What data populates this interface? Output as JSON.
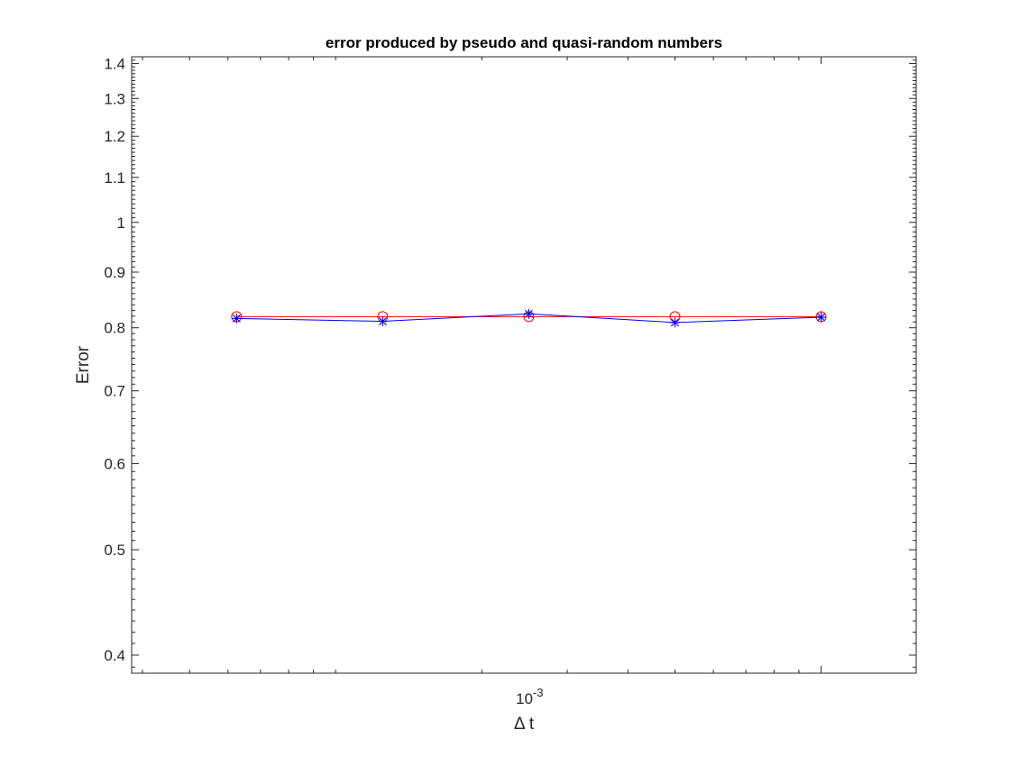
{
  "chart_data": {
    "type": "line",
    "title": "error produced by pseudo and quasi-random numbers",
    "xlabel": "Δ t",
    "ylabel": "Error",
    "x_scale": "log",
    "y_scale": "log",
    "x_tick_base": "10",
    "x_tick_exponent": "-3",
    "ylim": [
      0.385,
      1.42
    ],
    "y_ticks": [
      0.4,
      0.5,
      0.6,
      0.7,
      0.8,
      0.9,
      1,
      1.1,
      1.2,
      1.3,
      1.4
    ],
    "y_tick_labels": [
      "0.4",
      "0.5",
      "0.6",
      "0.7",
      "0.8",
      "0.9",
      "1",
      "1.1",
      "1.2",
      "1.3",
      "1.4"
    ],
    "grid": false,
    "box": true,
    "series": [
      {
        "color": "#ff0000",
        "marker": "circle",
        "x": [
          6.25e-05,
          0.000125,
          0.00025,
          0.0005,
          0.001
        ],
        "y": [
          0.819,
          0.819,
          0.819,
          0.819,
          0.819
        ]
      },
      {
        "color": "#0000ff",
        "marker": "asterisk",
        "x": [
          6.25e-05,
          0.000125,
          0.00025,
          0.0005,
          0.001
        ],
        "y": [
          0.816,
          0.811,
          0.824,
          0.809,
          0.818
        ]
      }
    ]
  }
}
